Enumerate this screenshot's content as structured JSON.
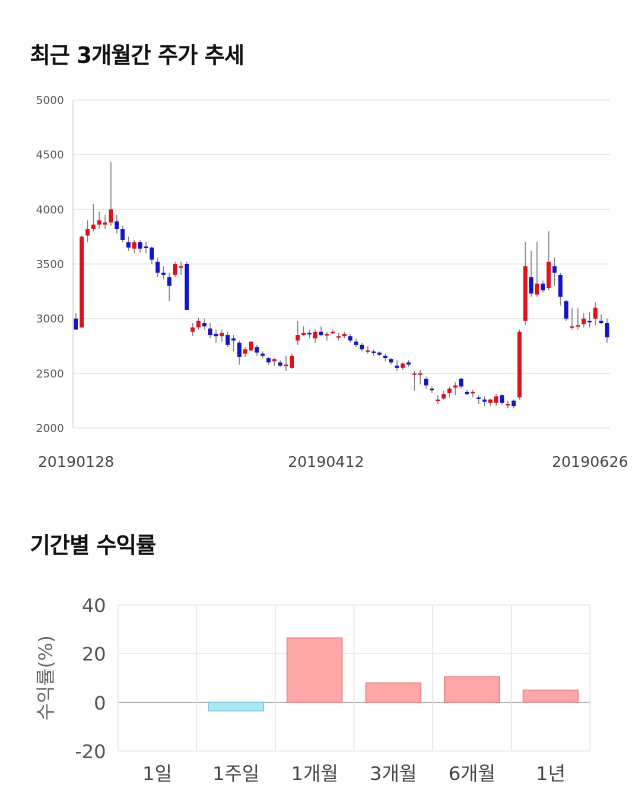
{
  "titles": {
    "price_trend": "최근 3개월간 주가 추세",
    "period_returns": "기간별 수익률"
  },
  "chart_data": [
    {
      "type": "candlestick",
      "title": "최근 3개월간 주가 추세",
      "ylim": [
        2000,
        5000
      ],
      "yticks": [
        2000,
        2500,
        3000,
        3500,
        4000,
        4500,
        5000
      ],
      "xticks": [
        "20190128",
        "20190412",
        "20190626"
      ],
      "grid": true,
      "colors": {
        "up": "#d9141c",
        "down": "#1414c8",
        "wick": "#777777",
        "grid": "#e6e6e6"
      },
      "candles": [
        [
          3000,
          3050,
          2900,
          2900
        ],
        [
          2920,
          3760,
          2910,
          3750
        ],
        [
          3760,
          3900,
          3700,
          3820
        ],
        [
          3820,
          4050,
          3800,
          3860
        ],
        [
          3860,
          3980,
          3820,
          3900
        ],
        [
          3860,
          3950,
          3820,
          3880
        ],
        [
          3880,
          4430,
          3850,
          4000
        ],
        [
          3890,
          3950,
          3780,
          3820
        ],
        [
          3820,
          3850,
          3700,
          3720
        ],
        [
          3700,
          3750,
          3620,
          3650
        ],
        [
          3640,
          3720,
          3600,
          3700
        ],
        [
          3700,
          3720,
          3600,
          3640
        ],
        [
          3660,
          3700,
          3600,
          3650
        ],
        [
          3650,
          3660,
          3500,
          3540
        ],
        [
          3520,
          3560,
          3380,
          3420
        ],
        [
          3420,
          3480,
          3360,
          3400
        ],
        [
          3380,
          3420,
          3160,
          3300
        ],
        [
          3400,
          3520,
          3380,
          3500
        ],
        [
          3480,
          3520,
          3400,
          3480
        ],
        [
          3500,
          3520,
          3080,
          3080
        ],
        [
          2880,
          2960,
          2840,
          2920
        ],
        [
          2920,
          3010,
          2900,
          2980
        ],
        [
          2960,
          3000,
          2900,
          2930
        ],
        [
          2910,
          2960,
          2820,
          2850
        ],
        [
          2860,
          2900,
          2780,
          2840
        ],
        [
          2840,
          2900,
          2790,
          2870
        ],
        [
          2850,
          2880,
          2740,
          2760
        ],
        [
          2820,
          2850,
          2700,
          2800
        ],
        [
          2780,
          2800,
          2580,
          2650
        ],
        [
          2680,
          2740,
          2650,
          2720
        ],
        [
          2710,
          2790,
          2700,
          2790
        ],
        [
          2740,
          2760,
          2660,
          2690
        ],
        [
          2680,
          2700,
          2640,
          2660
        ],
        [
          2640,
          2650,
          2580,
          2600
        ],
        [
          2610,
          2640,
          2570,
          2630
        ],
        [
          2600,
          2620,
          2560,
          2570
        ],
        [
          2570,
          2660,
          2520,
          2580
        ],
        [
          2550,
          2680,
          2540,
          2660
        ],
        [
          2800,
          2980,
          2760,
          2850
        ],
        [
          2850,
          2930,
          2840,
          2870
        ],
        [
          2870,
          2900,
          2820,
          2860
        ],
        [
          2820,
          2900,
          2780,
          2880
        ],
        [
          2880,
          2930,
          2840,
          2850
        ],
        [
          2850,
          2880,
          2800,
          2860
        ],
        [
          2880,
          2900,
          2860,
          2880
        ],
        [
          2840,
          2870,
          2800,
          2840
        ],
        [
          2840,
          2880,
          2820,
          2860
        ],
        [
          2840,
          2860,
          2780,
          2800
        ],
        [
          2790,
          2820,
          2740,
          2760
        ],
        [
          2760,
          2780,
          2700,
          2720
        ],
        [
          2700,
          2750,
          2680,
          2710
        ],
        [
          2700,
          2720,
          2660,
          2690
        ],
        [
          2690,
          2700,
          2660,
          2670
        ],
        [
          2660,
          2680,
          2610,
          2640
        ],
        [
          2630,
          2640,
          2580,
          2600
        ],
        [
          2570,
          2620,
          2520,
          2550
        ],
        [
          2550,
          2600,
          2530,
          2590
        ],
        [
          2600,
          2620,
          2560,
          2580
        ],
        [
          2490,
          2520,
          2340,
          2500
        ],
        [
          2500,
          2530,
          2400,
          2500
        ],
        [
          2450,
          2470,
          2360,
          2390
        ],
        [
          2360,
          2380,
          2320,
          2350
        ],
        [
          2250,
          2300,
          2220,
          2260
        ],
        [
          2270,
          2340,
          2260,
          2310
        ],
        [
          2320,
          2380,
          2280,
          2360
        ],
        [
          2370,
          2420,
          2300,
          2390
        ],
        [
          2450,
          2460,
          2360,
          2380
        ],
        [
          2330,
          2350,
          2300,
          2310
        ],
        [
          2320,
          2350,
          2280,
          2330
        ],
        [
          2280,
          2300,
          2220,
          2270
        ],
        [
          2260,
          2290,
          2200,
          2240
        ],
        [
          2230,
          2270,
          2200,
          2260
        ],
        [
          2230,
          2310,
          2200,
          2290
        ],
        [
          2300,
          2310,
          2210,
          2230
        ],
        [
          2220,
          2250,
          2180,
          2220
        ],
        [
          2250,
          2260,
          2180,
          2200
        ],
        [
          2280,
          2900,
          2260,
          2880
        ],
        [
          2980,
          3700,
          2940,
          3480
        ],
        [
          3380,
          3620,
          3200,
          3230
        ],
        [
          3220,
          3700,
          3200,
          3320
        ],
        [
          3320,
          3350,
          3240,
          3260
        ],
        [
          3280,
          3800,
          3260,
          3520
        ],
        [
          3480,
          3560,
          3300,
          3420
        ],
        [
          3400,
          3420,
          3120,
          3200
        ],
        [
          3160,
          3170,
          2980,
          3000
        ],
        [
          2920,
          3100,
          2900,
          2930
        ],
        [
          2930,
          3100,
          2900,
          2940
        ],
        [
          2950,
          3050,
          2920,
          3000
        ],
        [
          2980,
          3060,
          2920,
          2970
        ],
        [
          3000,
          3150,
          2940,
          3100
        ],
        [
          2980,
          3040,
          2950,
          2960
        ],
        [
          2960,
          3000,
          2780,
          2830
        ]
      ]
    },
    {
      "type": "bar",
      "title": "기간별 수익률",
      "ylabel": "수익률(%)",
      "ylim": [
        -20,
        40
      ],
      "yticks": [
        -20,
        0,
        20,
        40
      ],
      "categories": [
        "1일",
        "1주일",
        "1개월",
        "3개월",
        "6개월",
        "1년"
      ],
      "values": [
        0,
        -3.5,
        26.5,
        8,
        10.5,
        5
      ],
      "colors": {
        "positive": "#ffa6a6",
        "positive_edge": "#e8888a",
        "negative": "#aae8f4",
        "negative_edge": "#7cc6d6",
        "grid": "#e6e6e6",
        "zero": "#aaaaaa"
      }
    }
  ]
}
